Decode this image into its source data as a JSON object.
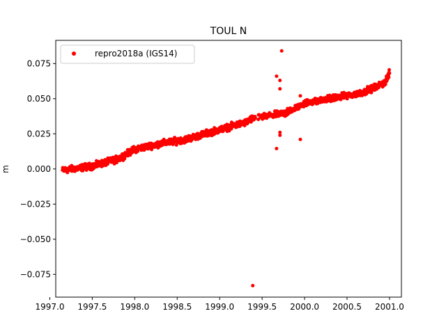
{
  "chart_data": {
    "type": "scatter",
    "title": "TOUL N",
    "xlabel": "",
    "ylabel": "m",
    "xlim": [
      1997.07,
      2001.14
    ],
    "ylim": [
      -0.0912,
      0.0915
    ],
    "xticks": [
      1997.0,
      1997.5,
      1998.0,
      1998.5,
      1999.0,
      1999.5,
      2000.0,
      2000.5,
      2001.0
    ],
    "xtick_labels": [
      "1997.0",
      "1997.5",
      "1998.0",
      "1998.5",
      "1999.0",
      "1999.5",
      "2000.0",
      "2000.5",
      "2001.0"
    ],
    "yticks": [
      0.075,
      0.05,
      0.025,
      0.0,
      -0.025,
      -0.05,
      -0.075
    ],
    "ytick_labels": [
      "0.075",
      "0.050",
      "0.025",
      "0.000",
      "−0.025",
      "−0.050",
      "−0.075"
    ],
    "grid": false,
    "legend_position": "top-left",
    "series": [
      {
        "name": "repro2018a (IGS14)",
        "color": "#ff0000",
        "marker": "circle",
        "trend_points": [
          [
            1997.15,
            -0.001
          ],
          [
            1997.5,
            0.002
          ],
          [
            1997.8,
            0.007
          ],
          [
            1998.0,
            0.014
          ],
          [
            1998.3,
            0.018
          ],
          [
            1998.6,
            0.021
          ],
          [
            1999.0,
            0.028
          ],
          [
            1999.3,
            0.033
          ],
          [
            1999.4,
            0.036
          ],
          [
            1999.5,
            0.037
          ],
          [
            1999.8,
            0.04
          ],
          [
            2000.0,
            0.047
          ],
          [
            2000.3,
            0.05
          ],
          [
            2000.6,
            0.053
          ],
          [
            2000.8,
            0.057
          ],
          [
            2000.95,
            0.062
          ],
          [
            2001.0,
            0.068
          ]
        ],
        "outliers": [
          [
            1999.39,
            -0.083
          ],
          [
            1999.67,
            0.066
          ],
          [
            1999.67,
            0.0145
          ],
          [
            1999.71,
            0.063
          ],
          [
            1999.71,
            0.057
          ],
          [
            1999.73,
            0.084
          ],
          [
            1999.71,
            0.026
          ],
          [
            1999.71,
            0.024
          ],
          [
            1999.95,
            0.021
          ],
          [
            1999.95,
            0.052
          ],
          [
            1999.8,
            0.043
          ],
          [
            1999.84,
            0.041
          ]
        ]
      }
    ]
  }
}
